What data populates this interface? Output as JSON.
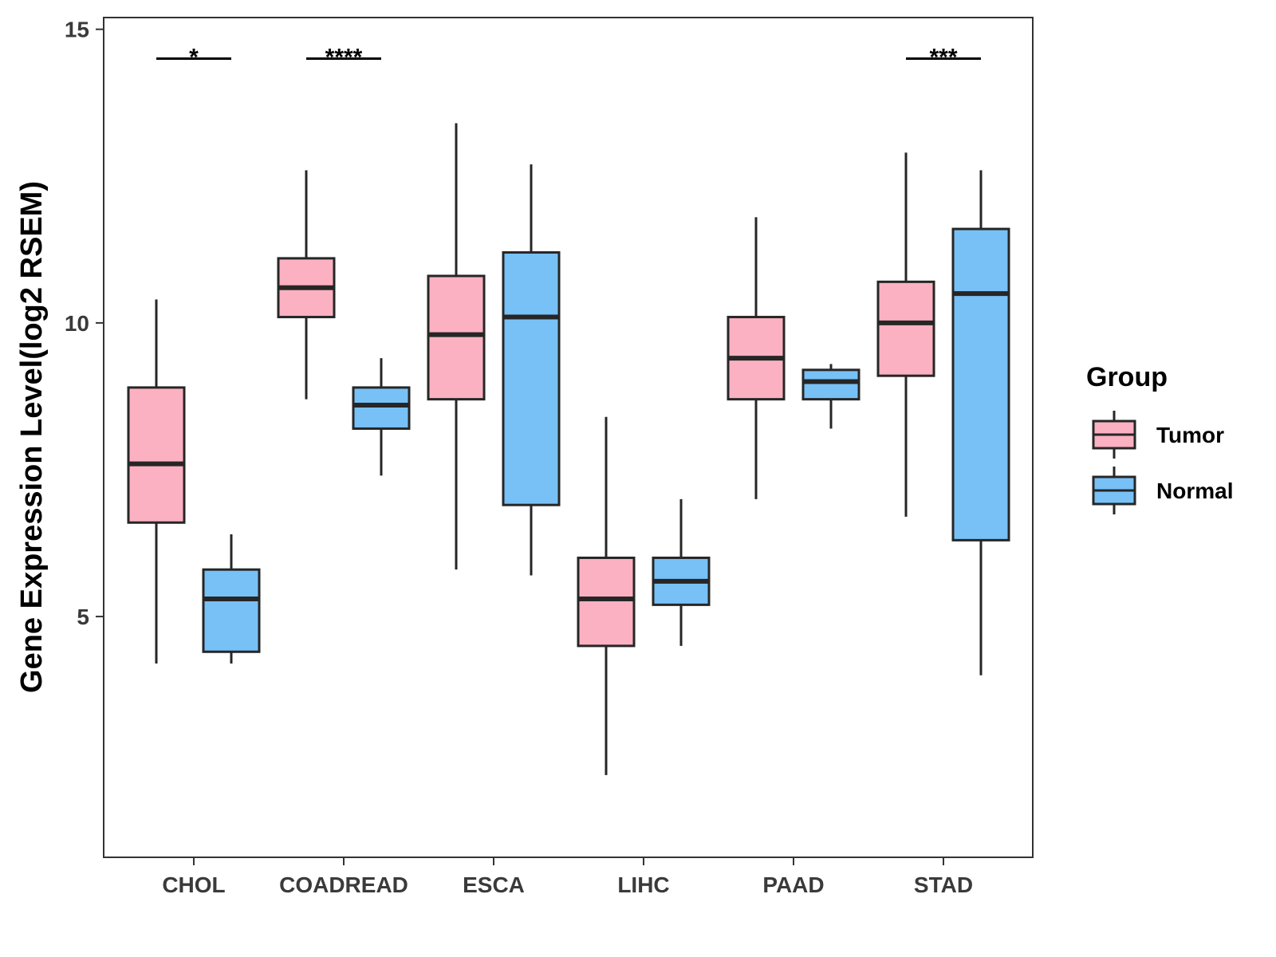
{
  "chart_data": {
    "type": "boxplot",
    "title": "",
    "xlabel": "",
    "ylabel": "Gene Expression Level(log2 RSEM)",
    "ylim": [
      0.9,
      15.2
    ],
    "yticks": [
      5,
      10,
      15
    ],
    "categories": [
      "CHOL",
      "COADREAD",
      "ESCA",
      "LIHC",
      "PAAD",
      "STAD"
    ],
    "legend": {
      "title": "Group",
      "position": "right"
    },
    "grid": false,
    "series": [
      {
        "name": "Tumor",
        "color": "#FBB1C1",
        "boxes": [
          {
            "whisker_low": 4.2,
            "q1": 6.6,
            "median": 7.6,
            "q3": 8.9,
            "whisker_high": 10.4
          },
          {
            "whisker_low": 8.7,
            "q1": 10.1,
            "median": 10.6,
            "q3": 11.1,
            "whisker_high": 12.6
          },
          {
            "whisker_low": 5.8,
            "q1": 8.7,
            "median": 9.8,
            "q3": 10.8,
            "whisker_high": 13.4
          },
          {
            "whisker_low": 2.3,
            "q1": 4.5,
            "median": 5.3,
            "q3": 6.0,
            "whisker_high": 8.4
          },
          {
            "whisker_low": 7.0,
            "q1": 8.7,
            "median": 9.4,
            "q3": 10.1,
            "whisker_high": 11.8
          },
          {
            "whisker_low": 6.7,
            "q1": 9.1,
            "median": 10.0,
            "q3": 10.7,
            "whisker_high": 12.9
          }
        ]
      },
      {
        "name": "Normal",
        "color": "#78C1F7",
        "boxes": [
          {
            "whisker_low": 4.2,
            "q1": 4.4,
            "median": 5.3,
            "q3": 5.8,
            "whisker_high": 6.4
          },
          {
            "whisker_low": 7.4,
            "q1": 8.2,
            "median": 8.6,
            "q3": 8.9,
            "whisker_high": 9.4
          },
          {
            "whisker_low": 5.7,
            "q1": 6.9,
            "median": 10.1,
            "q3": 11.2,
            "whisker_high": 12.7
          },
          {
            "whisker_low": 4.5,
            "q1": 5.2,
            "median": 5.6,
            "q3": 6.0,
            "whisker_high": 7.0
          },
          {
            "whisker_low": 8.2,
            "q1": 8.7,
            "median": 9.0,
            "q3": 9.2,
            "whisker_high": 9.3
          },
          {
            "whisker_low": 4.0,
            "q1": 6.3,
            "median": 10.5,
            "q3": 11.6,
            "whisker_high": 12.6
          }
        ]
      }
    ],
    "significance": [
      {
        "category": "CHOL",
        "label": "*",
        "y": 14.5
      },
      {
        "category": "COADREAD",
        "label": "****",
        "y": 14.5
      },
      {
        "category": "STAD",
        "label": "***",
        "y": 14.5
      }
    ]
  }
}
